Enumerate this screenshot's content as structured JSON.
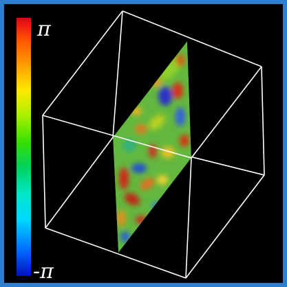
{
  "colorbar": {
    "max_label": "π",
    "min_label": "-π"
  },
  "colors": {
    "frame_background": "#2e7fd0",
    "viewport_background": "#000000",
    "box_lines": "#ffffff"
  }
}
